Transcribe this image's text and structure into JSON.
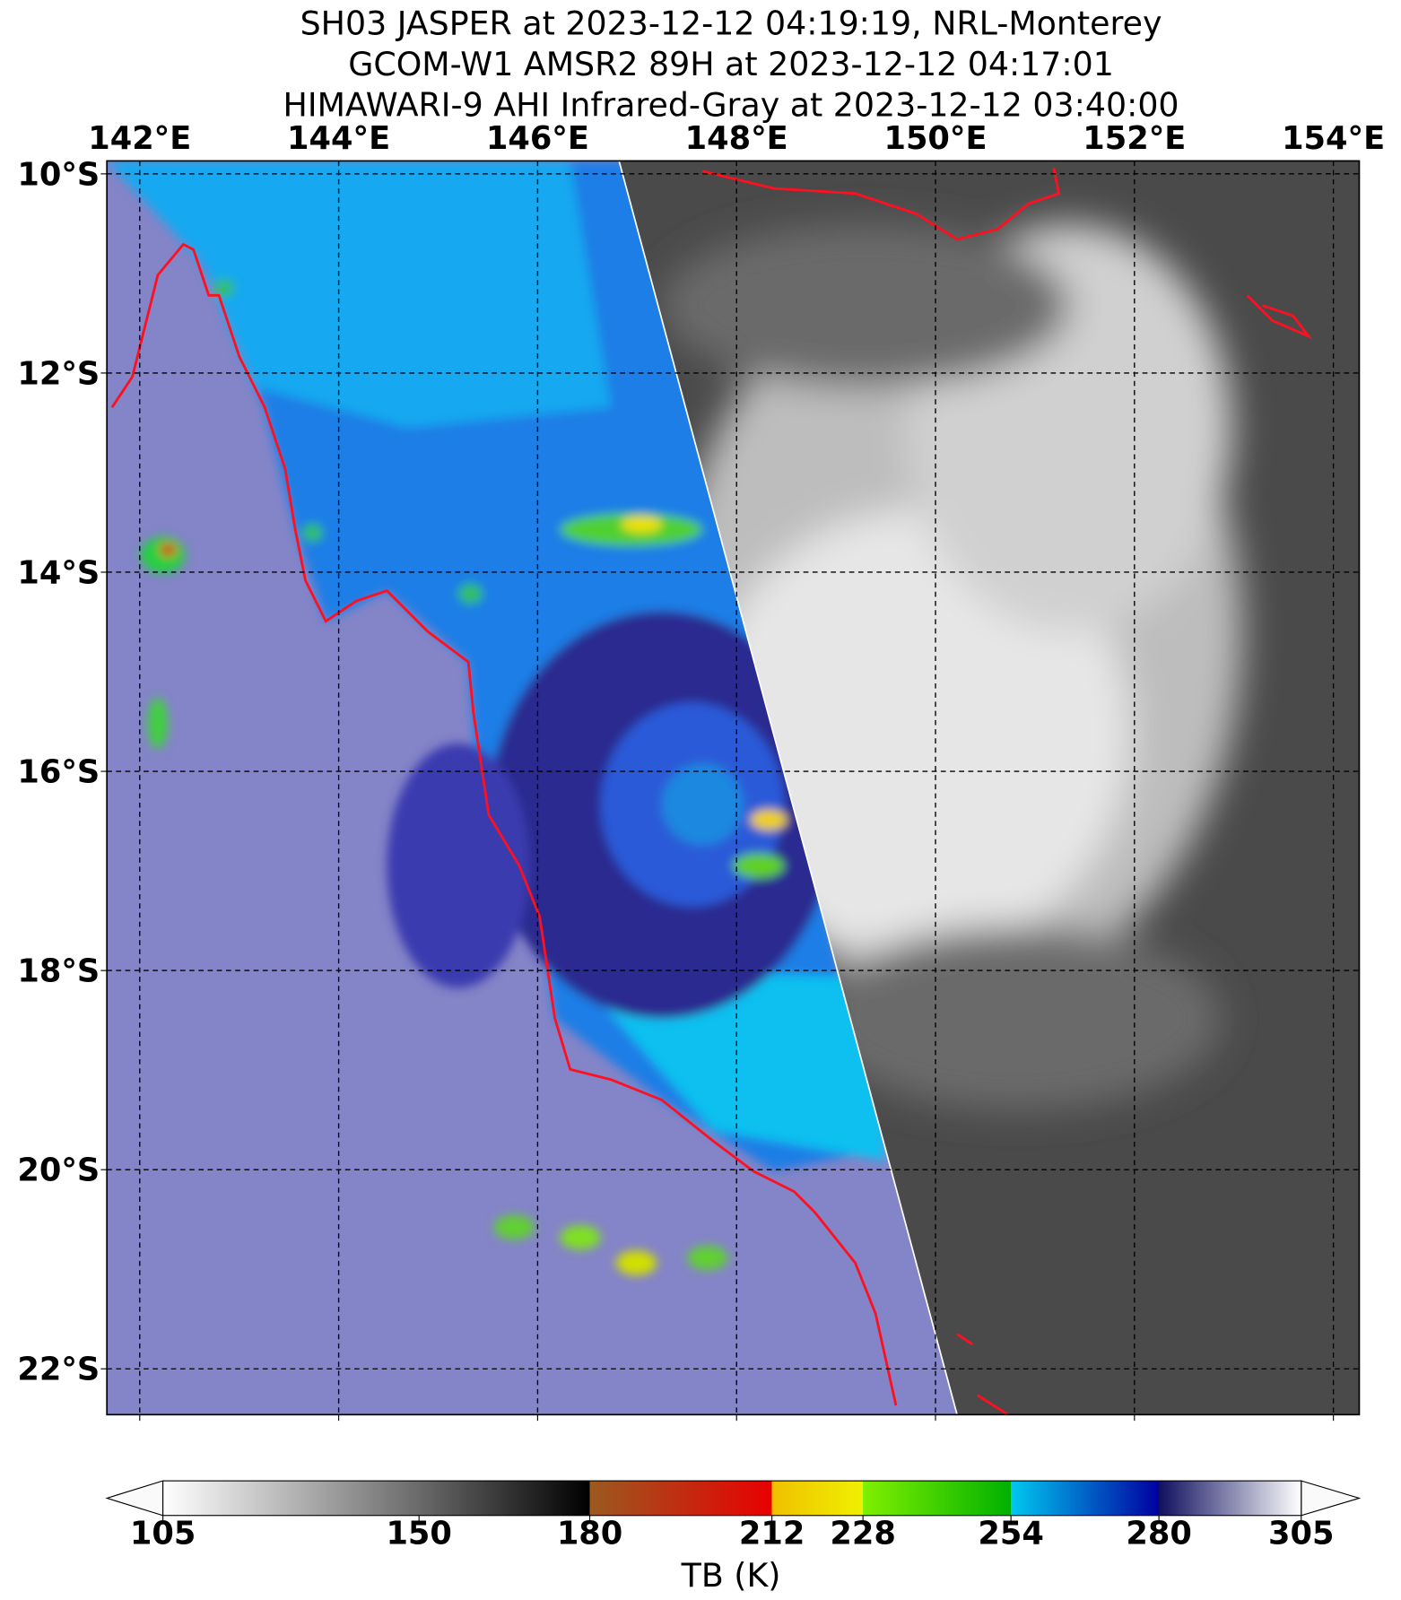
{
  "title_lines": [
    "SH03 JASPER at 2023-12-12 04:19:19, NRL-Monterey",
    "GCOM-W1 AMSR2 89H at 2023-12-12 04:17:01",
    "HIMAWARI-9 AHI Infrared-Gray at 2023-12-12 03:40:00"
  ],
  "map": {
    "xlim": [
      141.67,
      154.26
    ],
    "ylim": [
      -22.46,
      -9.87
    ],
    "xticks": [
      {
        "value": 142,
        "label": "142°E"
      },
      {
        "value": 144,
        "label": "144°E"
      },
      {
        "value": 146,
        "label": "146°E"
      },
      {
        "value": 148,
        "label": "148°E"
      },
      {
        "value": 150,
        "label": "150°E"
      },
      {
        "value": 152,
        "label": "152°E"
      },
      {
        "value": 154,
        "label": "154°E"
      }
    ],
    "yticks": [
      {
        "value": -10,
        "label": "10°S"
      },
      {
        "value": -12,
        "label": "12°S"
      },
      {
        "value": -14,
        "label": "14°S"
      },
      {
        "value": -16,
        "label": "16°S"
      },
      {
        "value": -18,
        "label": "18°S"
      },
      {
        "value": -20,
        "label": "20°S"
      },
      {
        "value": -22,
        "label": "22°S"
      }
    ],
    "grid": true
  },
  "colorbar": {
    "label": "TB (K)",
    "lim": [
      105,
      305
    ],
    "ticks": [
      105,
      150,
      180,
      212,
      228,
      254,
      280,
      305
    ],
    "colors": [
      [
        "#ffffff",
        "#6a6a6a"
      ],
      [
        "#6a6a6a",
        "#000000"
      ],
      [
        "#9a5a20",
        "#e80000"
      ],
      [
        "#f0c000",
        "#f0f000"
      ],
      [
        "#80f000",
        "#00b000"
      ],
      [
        "#00c8f0",
        "#0000a0"
      ],
      [
        "#101060",
        "#ffffff"
      ]
    ]
  }
}
